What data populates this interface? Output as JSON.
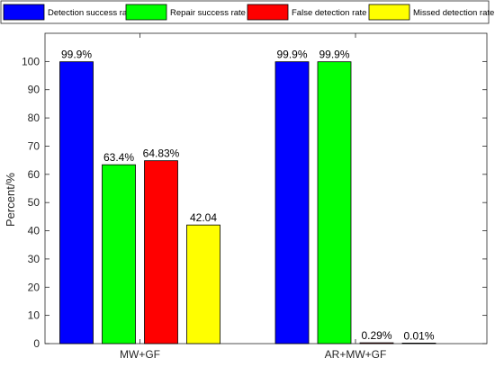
{
  "chart_data": {
    "type": "bar",
    "title": "",
    "xlabel": "",
    "ylabel": "Percent/%",
    "ylim": [
      0,
      110
    ],
    "yticks": [
      0,
      10,
      20,
      30,
      40,
      50,
      60,
      70,
      80,
      90,
      100
    ],
    "grid": false,
    "legend_position": "top",
    "categories": [
      "MW+GF",
      "AR+MW+GF"
    ],
    "series": [
      {
        "name": "Detection success rate",
        "color": "#0000ff",
        "values": [
          99.9,
          99.9
        ],
        "labels": [
          "99.9%",
          "99.9%"
        ]
      },
      {
        "name": "Repair success rate",
        "color": "#00ff00",
        "values": [
          63.4,
          99.9
        ],
        "labels": [
          "63.4%",
          "99.9%"
        ]
      },
      {
        "name": "False detection rate",
        "color": "#ff0000",
        "values": [
          64.83,
          0.29
        ],
        "labels": [
          "64.83%",
          "0.29%"
        ]
      },
      {
        "name": "Missed detection rate",
        "color": "#ffff00",
        "values": [
          42.04,
          0.01
        ],
        "labels": [
          "42.04",
          "0.01%"
        ]
      }
    ]
  }
}
